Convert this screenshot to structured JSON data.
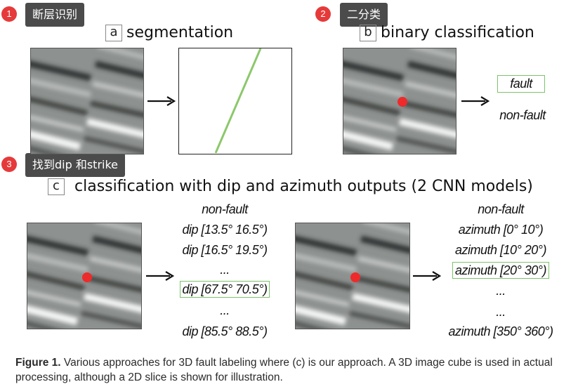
{
  "steps": [
    {
      "num": "1",
      "label": "断层识别"
    },
    {
      "num": "2",
      "label": "二分类"
    },
    {
      "num": "3",
      "label": "找到dip 和strike"
    }
  ],
  "panel_a": {
    "letter": "a",
    "title": "segmentation"
  },
  "panel_b": {
    "letter": "b",
    "title": "binary classification",
    "labels": [
      "fault",
      "non-fault"
    ]
  },
  "panel_c": {
    "letter": "c",
    "title": "classification with dip and azimuth outputs (2 CNN models)",
    "dip_labels": [
      "non-fault",
      "dip [13.5° 16.5°)",
      "dip [16.5° 19.5°)",
      "...",
      "dip [67.5° 70.5°)",
      "...",
      "dip [85.5° 88.5°)"
    ],
    "azimuth_labels": [
      "non-fault",
      "azimuth [0° 10°)",
      "azimuth [10° 20°)",
      "azimuth [20° 30°)",
      "...",
      "...",
      "azimuth [350° 360°)"
    ]
  },
  "caption": {
    "prefix": "Figure 1.",
    "text": " Various approaches for 3D fault labeling where (c) is our approach. A 3D image cube is used in actual processing, although a 2D slice is shown for illustration."
  },
  "colors": {
    "accent_red": "#e63a3a",
    "highlight_green": "#7cc36a",
    "tooltip_bg": "#4b4b4b"
  }
}
